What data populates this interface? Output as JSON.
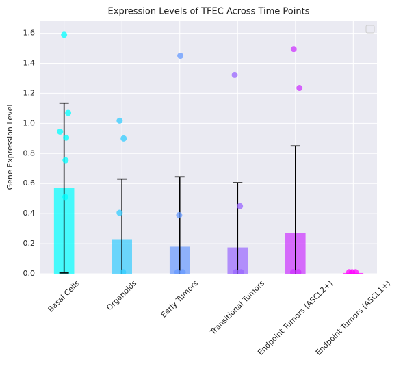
{
  "chart_data": {
    "type": "bar",
    "title": "Expression Levels of TFEC Across Time Points",
    "ylabel": "Gene Expression Level",
    "categories": [
      "Basal Cells",
      "Organoids",
      "Early Tumors",
      "Transitional Tumors",
      "Endpoint Tumors (ASCL2+)",
      "Endpoint Tumors (ASCL1+)"
    ],
    "values": [
      0.57,
      0.23,
      0.18,
      0.175,
      0.27,
      0.005
    ],
    "errors": [
      0.565,
      0.4,
      0.465,
      0.43,
      0.58,
      0
    ],
    "colors": [
      "#00ffff",
      "#33ccff",
      "#6699ff",
      "#9966ff",
      "#cc33ff",
      "#ff00ff"
    ],
    "points": [
      {
        "x": [
          0.0,
          0.07,
          -0.07,
          0.035,
          0.025,
          0.02
        ],
        "y": [
          1.59,
          1.07,
          0.945,
          0.905,
          0.755,
          0.51
        ]
      },
      {
        "x": [
          0.96,
          1.03,
          0.96,
          1.02
        ],
        "y": [
          1.018,
          0.9,
          0.405,
          0.01
        ]
      },
      {
        "x": [
          2.01,
          1.99,
          1.96,
          2.05
        ],
        "y": [
          1.45,
          0.39,
          0.01,
          0.01
        ]
      },
      {
        "x": [
          2.95,
          3.04,
          2.97,
          3.06
        ],
        "y": [
          1.323,
          0.45,
          0.01,
          0.01
        ]
      },
      {
        "x": [
          3.97,
          4.07,
          3.96,
          4.05
        ],
        "y": [
          1.495,
          1.236,
          0.01,
          0.01
        ]
      },
      {
        "x": [
          4.93,
          4.98,
          5.04
        ],
        "y": [
          0.01,
          0.01,
          0.01
        ]
      }
    ],
    "xlim": [
      -0.41,
      5.41
    ],
    "ylim": [
      0,
      1.68
    ],
    "yticks": [
      {
        "value": 0,
        "label": "0.0"
      },
      {
        "value": 0.2,
        "label": "0.2"
      },
      {
        "value": 0.4,
        "label": "0.4"
      },
      {
        "value": 0.6,
        "label": "0.6"
      },
      {
        "value": 0.8,
        "label": "0.8"
      },
      {
        "value": 1.0,
        "label": "1.0"
      },
      {
        "value": 1.2,
        "label": "1.2"
      },
      {
        "value": 1.4,
        "label": "1.4"
      },
      {
        "value": 1.6,
        "label": "1.6"
      }
    ],
    "grid": true,
    "legend": "upper right"
  }
}
